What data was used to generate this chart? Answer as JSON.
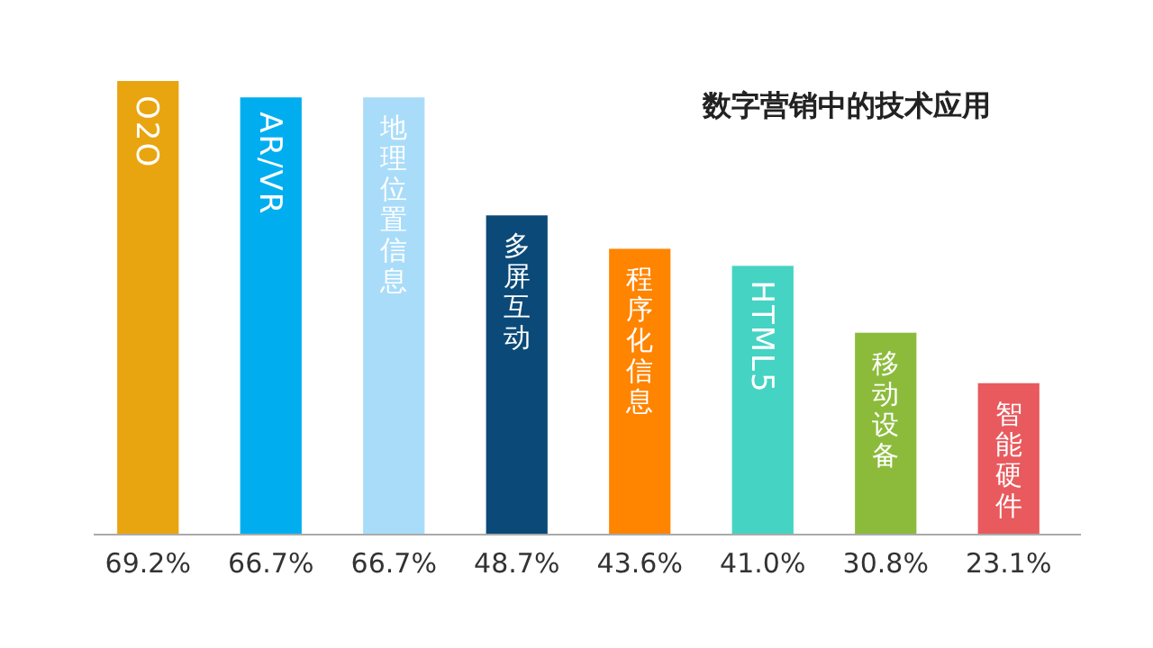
{
  "chart_data": {
    "type": "bar",
    "title": "数字营销中的技术应用",
    "categories": [
      "O2O",
      "AR/VR",
      "地理位置信息",
      "多屏互动",
      "程序化信息",
      "HTML5",
      "移动设备",
      "智能硬件"
    ],
    "values": [
      69.2,
      66.7,
      66.7,
      48.7,
      43.6,
      41.0,
      30.8,
      23.1
    ],
    "value_labels": [
      "69.2%",
      "66.7%",
      "66.7%",
      "48.7%",
      "43.6%",
      "41.0%",
      "30.8%",
      "23.1%"
    ],
    "colors": [
      "#e9a50f",
      "#00aeef",
      "#a9dcf9",
      "#0b4a78",
      "#ff8400",
      "#45d3c3",
      "#8cbb3c",
      "#e85a5e"
    ]
  }
}
